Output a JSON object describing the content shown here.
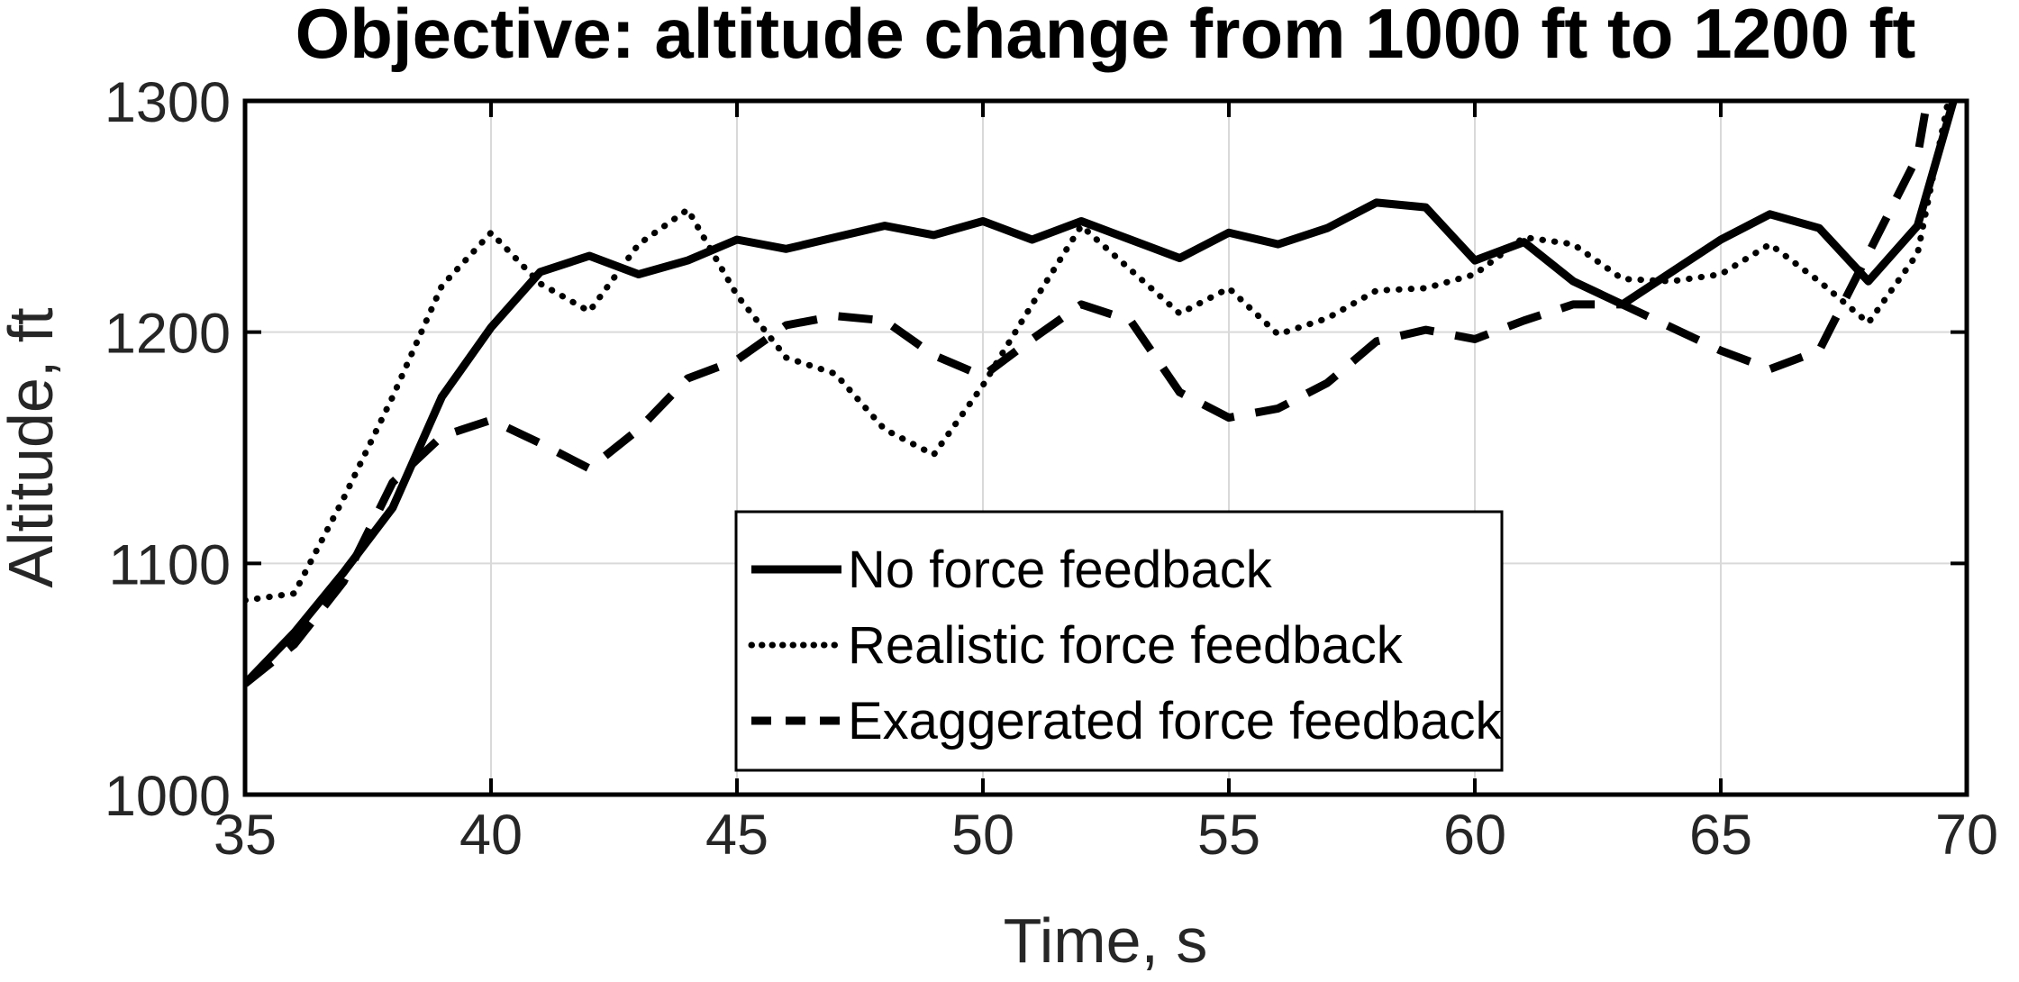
{
  "chart_data": {
    "type": "line",
    "title": "Objective: altitude change from 1000 ft to 1200 ft",
    "xlabel": "Time, s",
    "ylabel": "Altitude, ft",
    "xlim": [
      35,
      70
    ],
    "ylim": [
      1000,
      1300
    ],
    "x_ticks": [
      35,
      40,
      45,
      50,
      55,
      60,
      65,
      70
    ],
    "y_ticks": [
      1000,
      1100,
      1200,
      1300
    ],
    "grid": true,
    "legend_position": "inside-bottom-center",
    "x": [
      35,
      36,
      37,
      38,
      39,
      40,
      41,
      42,
      43,
      44,
      45,
      46,
      47,
      48,
      49,
      50,
      51,
      52,
      53,
      54,
      55,
      56,
      57,
      58,
      59,
      60,
      61,
      62,
      63,
      64,
      65,
      66,
      67,
      68,
      69,
      70
    ],
    "series": [
      {
        "name": "No force feedback",
        "style": "solid",
        "values": [
          1048,
          1070,
          1096,
          1124,
          1172,
          1202,
          1226,
          1233,
          1225,
          1231,
          1240,
          1236,
          1241,
          1246,
          1242,
          1248,
          1240,
          1248,
          1240,
          1232,
          1243,
          1238,
          1245,
          1256,
          1254,
          1231,
          1239,
          1222,
          1212,
          1226,
          1240,
          1251,
          1245,
          1222,
          1246,
          1320
        ]
      },
      {
        "name": "Realistic force feedback",
        "style": "dotted",
        "values": [
          1084,
          1087,
          1128,
          1172,
          1220,
          1243,
          1221,
          1209,
          1238,
          1253,
          1216,
          1189,
          1182,
          1158,
          1147,
          1177,
          1212,
          1246,
          1227,
          1208,
          1219,
          1199,
          1206,
          1218,
          1219,
          1225,
          1241,
          1238,
          1223,
          1222,
          1225,
          1238,
          1222,
          1204,
          1234,
          1340
        ]
      },
      {
        "name": "Exaggerated force feedback",
        "style": "dashed",
        "values": [
          1048,
          1065,
          1092,
          1135,
          1155,
          1162,
          1152,
          1141,
          1158,
          1180,
          1188,
          1203,
          1207,
          1205,
          1190,
          1181,
          1197,
          1212,
          1205,
          1174,
          1163,
          1167,
          1178,
          1196,
          1201,
          1197,
          1205,
          1212,
          1212,
          1202,
          1192,
          1184,
          1192,
          1234,
          1276,
          1400
        ]
      }
    ],
    "colors": {
      "line": "#000000",
      "grid": "#d9d9d9",
      "text": "#262626",
      "background": "#ffffff"
    }
  }
}
